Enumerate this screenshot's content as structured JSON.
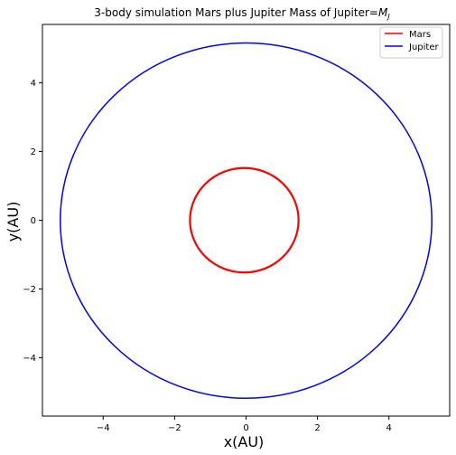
{
  "chart_data": {
    "type": "line",
    "title": "3-body simulation  Mars plus Jupiter  Mass of Jupiter=",
    "title_math_symbol": "M",
    "title_math_subscript": "J",
    "xlabel": "x(AU)",
    "ylabel": "y(AU)",
    "xlim": [
      -5.7,
      5.7
    ],
    "ylim": [
      -5.7,
      5.7
    ],
    "xticks": [
      -4,
      -2,
      0,
      2,
      4
    ],
    "yticks": [
      -4,
      -2,
      0,
      2,
      4
    ],
    "xtick_labels": [
      "−4",
      "−2",
      "0",
      "2",
      "4"
    ],
    "ytick_labels": [
      "−4",
      "−2",
      "0",
      "2",
      "4"
    ],
    "grid": false,
    "legend_position": "top-right",
    "series": [
      {
        "name": "Mars",
        "color": "#ff0000",
        "shape": "ellipse",
        "center": [
          -0.05,
          0.0
        ],
        "radius_x": 1.52,
        "radius_y": 1.52
      },
      {
        "name": "Jupiter",
        "color": "#0000ff",
        "shape": "ellipse",
        "center": [
          0.0,
          -0.01
        ],
        "radius_x": 5.2,
        "radius_y": 5.17
      }
    ]
  }
}
